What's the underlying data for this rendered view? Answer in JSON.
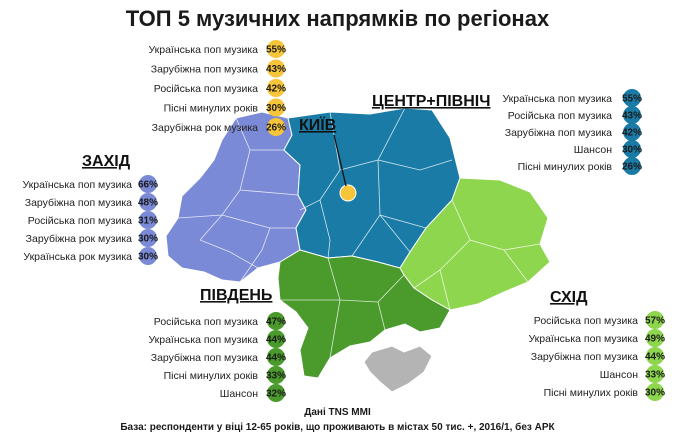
{
  "title": "ТОП 5 музичних напрямків по регіонах",
  "capital_label": "КИЇВ",
  "regions": [
    {
      "id": "kyiv",
      "name": "",
      "color": "#f7c53a",
      "items": [
        {
          "genre": "Українська поп музика",
          "pct": "55%"
        },
        {
          "genre": "Зарубіжна поп музика",
          "pct": "43%"
        },
        {
          "genre": "Російська поп музика",
          "pct": "42%"
        },
        {
          "genre": "Пісні минулих років",
          "pct": "30%"
        },
        {
          "genre": "Зарубіжна рок музика",
          "pct": "26%"
        }
      ]
    },
    {
      "id": "center-north",
      "name": "ЦЕНТР+ПІВНІЧ",
      "color": "#1a7ca6",
      "items": [
        {
          "genre": "Українська поп музика",
          "pct": "55%"
        },
        {
          "genre": "Російська поп музика",
          "pct": "43%"
        },
        {
          "genre": "Зарубіжна поп музика",
          "pct": "42%"
        },
        {
          "genre": "Шансон",
          "pct": "30%"
        },
        {
          "genre": "Пісні минулих років",
          "pct": "26%"
        }
      ]
    },
    {
      "id": "west",
      "name": "ЗАХІД",
      "color": "#7b8ad6",
      "items": [
        {
          "genre": "Українська поп музика",
          "pct": "66%"
        },
        {
          "genre": "Зарубіжна поп музика",
          "pct": "48%"
        },
        {
          "genre": "Російська поп музика",
          "pct": "31%"
        },
        {
          "genre": "Зарубіжна рок музика",
          "pct": "30%"
        },
        {
          "genre": "Українська рок музика",
          "pct": "30%"
        }
      ]
    },
    {
      "id": "south",
      "name": "ПІВДЕНЬ",
      "color": "#4a9a2c",
      "items": [
        {
          "genre": "Російська поп музика",
          "pct": "47%"
        },
        {
          "genre": "Українська поп музика",
          "pct": "44%"
        },
        {
          "genre": "Зарубіжна поп музика",
          "pct": "44%"
        },
        {
          "genre": "Пісні минулих років",
          "pct": "33%"
        },
        {
          "genre": "Шансон",
          "pct": "32%"
        }
      ]
    },
    {
      "id": "east",
      "name": "СХІД",
      "color": "#8ed64e",
      "items": [
        {
          "genre": "Російська поп музика",
          "pct": "57%"
        },
        {
          "genre": "Українська поп музика",
          "pct": "49%"
        },
        {
          "genre": "Зарубіжна поп музика",
          "pct": "44%"
        },
        {
          "genre": "Шансон",
          "pct": "33%"
        },
        {
          "genre": "Пісні минулих років",
          "pct": "30%"
        }
      ]
    }
  ],
  "crimea_color": "#b4b4b4",
  "footer": {
    "source": "Дані TNS MMI",
    "base": "База: респонденти у віці 12-65 років, що проживають в містах 50 тис. +, 2016/1, без АРК"
  }
}
